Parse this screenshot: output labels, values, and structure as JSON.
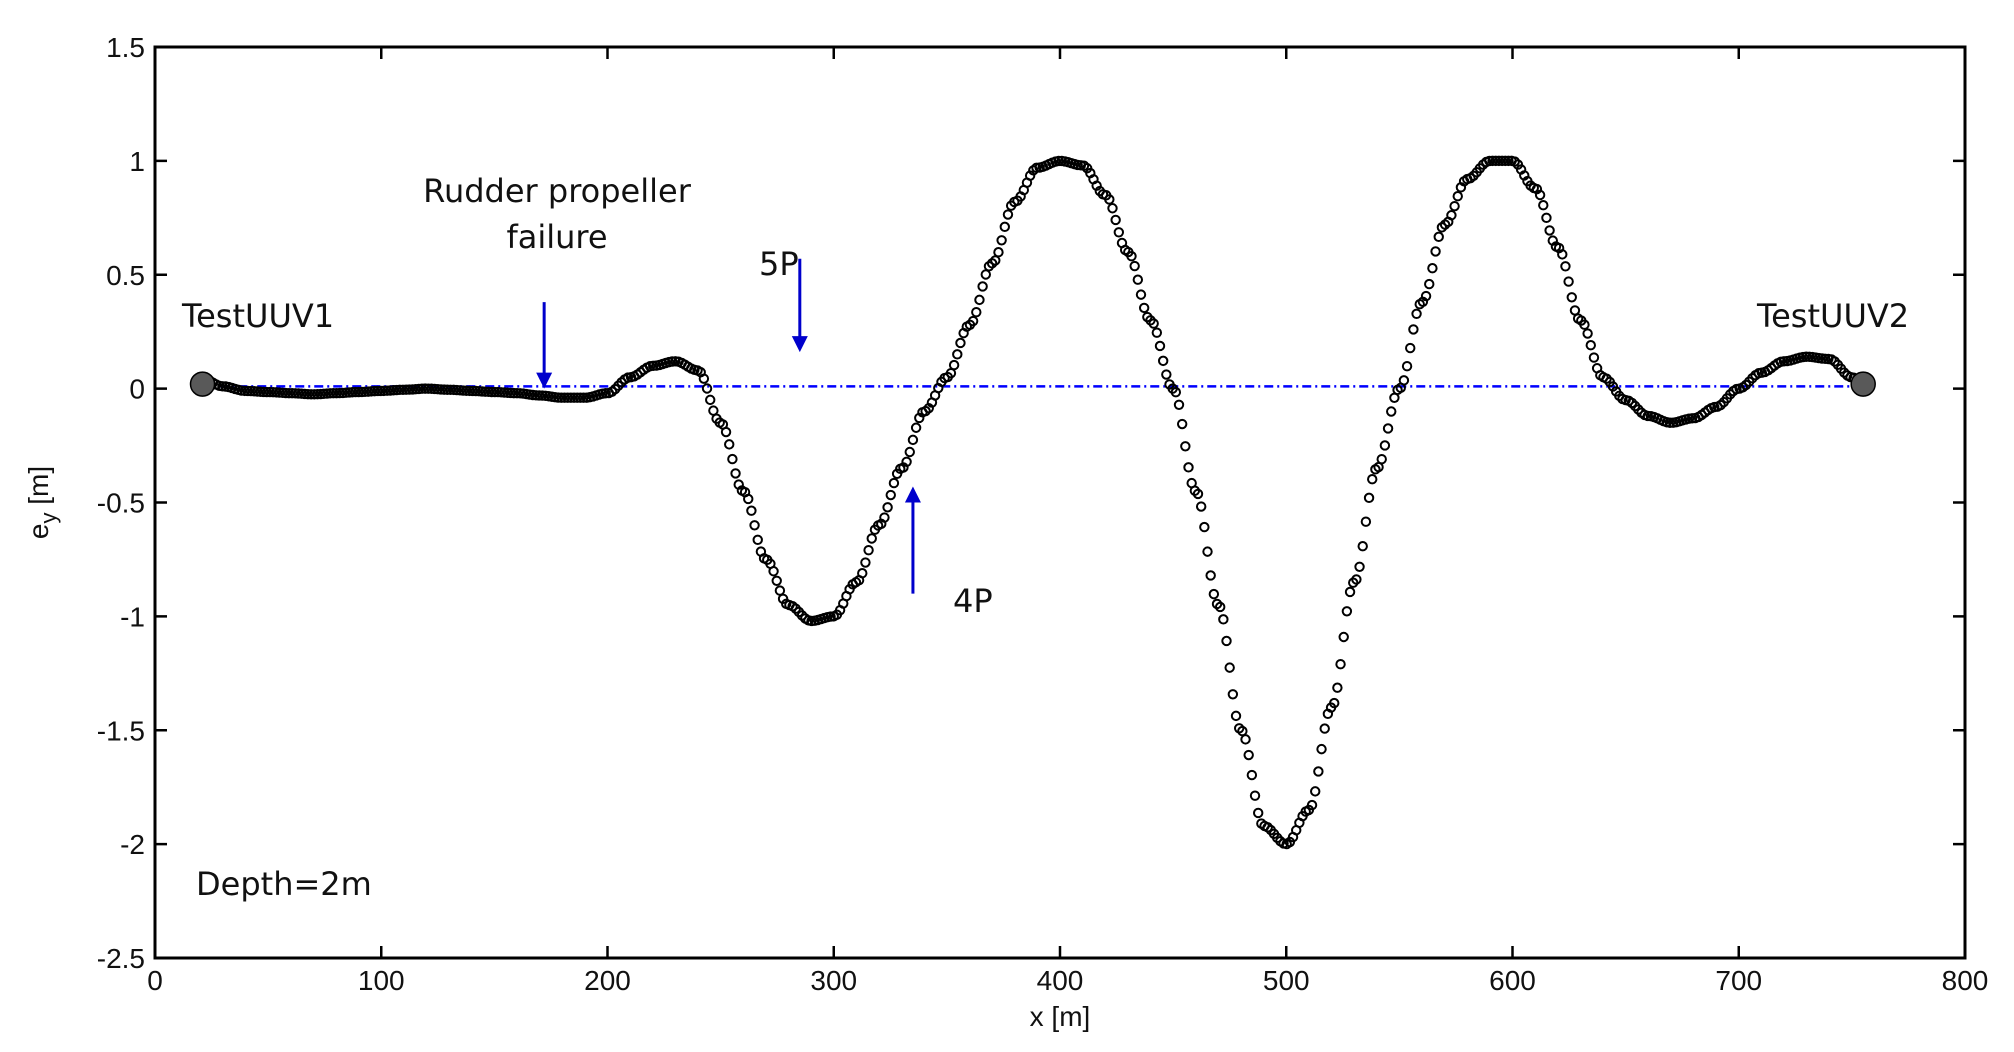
{
  "chart_data": {
    "type": "scatter",
    "xlabel": "x [m]",
    "ylabel_main": "e",
    "ylabel_sub": "y",
    "ylabel_unit": " [m]",
    "xlim": [
      0,
      800
    ],
    "ylim": [
      -2.5,
      1.5
    ],
    "xticks": [
      0,
      100,
      200,
      300,
      400,
      500,
      600,
      700,
      800
    ],
    "xtick_labels": [
      "0",
      "100",
      "200",
      "300",
      "400",
      "500",
      "600",
      "700",
      "800"
    ],
    "yticks": [
      1.5,
      1,
      0.5,
      0,
      -0.5,
      -1,
      -1.5,
      -2,
      -2.5
    ],
    "ytick_labels": [
      "1.5",
      "1",
      "0.5",
      "0",
      "-0.5",
      "-1",
      "-1.5",
      "-2",
      "-2.5"
    ],
    "grid": false,
    "legend": "none",
    "series": [
      {
        "marker": "open-circle",
        "color": "#000000",
        "x": [
          20,
          30,
          40,
          50,
          60,
          70,
          80,
          90,
          100,
          110,
          120,
          130,
          140,
          150,
          160,
          170,
          180,
          190,
          200,
          210,
          220,
          230,
          240,
          250,
          260,
          270,
          280,
          290,
          300,
          310,
          320,
          330,
          340,
          350,
          360,
          370,
          380,
          390,
          400,
          410,
          420,
          430,
          440,
          450,
          460,
          470,
          480,
          490,
          500,
          510,
          520,
          530,
          540,
          550,
          560,
          570,
          580,
          590,
          600,
          610,
          620,
          630,
          640,
          650,
          660,
          670,
          680,
          690,
          700,
          710,
          720,
          730,
          740,
          750,
          755
        ],
        "y": [
          0.05,
          0.01,
          -0.01,
          -0.015,
          -0.02,
          -0.025,
          -0.02,
          -0.015,
          -0.01,
          -0.005,
          0.0,
          -0.005,
          -0.01,
          -0.015,
          -0.02,
          -0.03,
          -0.04,
          -0.04,
          -0.02,
          0.05,
          0.1,
          0.12,
          0.08,
          -0.15,
          -0.45,
          -0.75,
          -0.95,
          -1.02,
          -1.0,
          -0.85,
          -0.6,
          -0.35,
          -0.1,
          0.05,
          0.28,
          0.55,
          0.82,
          0.97,
          1.0,
          0.98,
          0.85,
          0.6,
          0.3,
          0.0,
          -0.45,
          -0.95,
          -1.5,
          -1.92,
          -2.0,
          -1.85,
          -1.4,
          -0.85,
          -0.35,
          0.0,
          0.38,
          0.72,
          0.92,
          1.0,
          1.0,
          0.88,
          0.62,
          0.3,
          0.05,
          -0.05,
          -0.12,
          -0.15,
          -0.13,
          -0.08,
          0.0,
          0.07,
          0.12,
          0.14,
          0.13,
          0.05,
          0.02
        ]
      },
      {
        "marker": "dash-dot-line",
        "color": "#0000ff",
        "x": [
          20,
          100,
          200,
          300,
          400,
          500,
          600,
          700,
          755
        ],
        "y": [
          0.01,
          0.01,
          0.01,
          0.01,
          0.01,
          0.01,
          0.01,
          0.01,
          0.01
        ]
      }
    ],
    "endpoints": [
      {
        "x": 21,
        "y": 0.02,
        "color": "#595959"
      },
      {
        "x": 755,
        "y": 0.02,
        "color": "#595959"
      }
    ],
    "annotations": [
      {
        "id": "testuuv1",
        "text": "TestUUV1"
      },
      {
        "id": "testuuv2",
        "text": "TestUUV2"
      },
      {
        "id": "rudder-line1",
        "text": "Rudder propeller"
      },
      {
        "id": "rudder-line2",
        "text": "failure"
      },
      {
        "id": "label-5p",
        "text": "5P"
      },
      {
        "id": "label-4p",
        "text": "4P"
      },
      {
        "id": "depth",
        "text": "Depth=2m"
      }
    ],
    "arrows": [
      {
        "id": "arrow-failure",
        "x": 172,
        "y_from": 0.38,
        "y_to": 0.0,
        "color": "#0000cc"
      },
      {
        "id": "arrow-5p",
        "x": 285,
        "y_from": 0.57,
        "y_to": 0.16,
        "color": "#0000cc"
      },
      {
        "id": "arrow-4p",
        "x": 335,
        "y_from": -0.9,
        "y_to": -0.43,
        "color": "#0000cc"
      }
    ]
  }
}
